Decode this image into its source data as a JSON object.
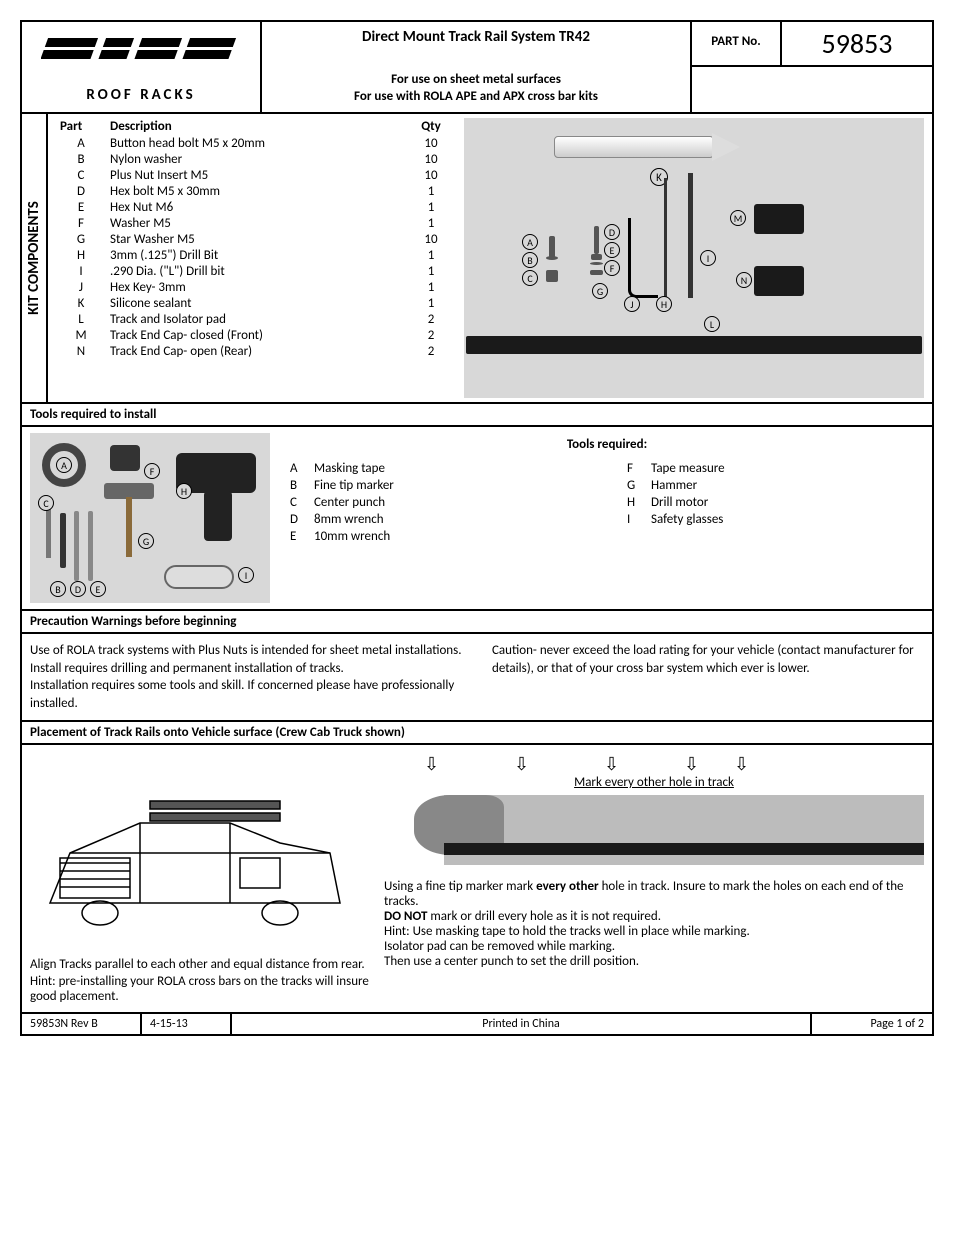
{
  "header": {
    "brand_top": "ROLA",
    "brand_bottom": "ROOF RACKS",
    "title": "Direct Mount Track Rail System TR42",
    "sub1": "For use on sheet metal surfaces",
    "sub2": "For use with ROLA APE and APX cross bar kits",
    "partno_label": "PART No.",
    "partno_value": "59853"
  },
  "kit": {
    "vlabel": "KIT COMPONENTS",
    "col_part": "Part",
    "col_desc": "Description",
    "col_qty": "Qty",
    "rows": [
      {
        "p": "A",
        "d": "Button head bolt M5 x 20mm",
        "q": "10"
      },
      {
        "p": "B",
        "d": "Nylon washer",
        "q": "10"
      },
      {
        "p": "C",
        "d": "Plus Nut Insert M5",
        "q": "10"
      },
      {
        "p": "D",
        "d": "Hex bolt M5 x 30mm",
        "q": "1"
      },
      {
        "p": "E",
        "d": "Hex Nut M6",
        "q": "1"
      },
      {
        "p": "F",
        "d": "Washer M5",
        "q": "1"
      },
      {
        "p": "G",
        "d": "Star Washer M5",
        "q": "10"
      },
      {
        "p": "H",
        "d": "3mm  (.125\") Drill Bit",
        "q": "1"
      },
      {
        "p": "I",
        "d": ".290 Dia. (\"L\") Drill bit",
        "q": "1"
      },
      {
        "p": "J",
        "d": "Hex Key- 3mm",
        "q": "1"
      },
      {
        "p": "K",
        "d": "Silicone sealant",
        "q": "1"
      },
      {
        "p": "L",
        "d": "Track and Isolator pad",
        "q": "2"
      },
      {
        "p": "M",
        "d": "Track End Cap- closed  (Front)",
        "q": "2"
      },
      {
        "p": "N",
        "d": "Track End Cap- open  (Rear)",
        "q": "2"
      }
    ],
    "labels": {
      "A": "A",
      "B": "B",
      "C": "C",
      "D": "D",
      "E": "E",
      "F": "F",
      "G": "G",
      "H": "H",
      "I": "I",
      "J": "J",
      "K": "K",
      "L": "L",
      "M": "M",
      "N": "N"
    }
  },
  "tools_bar": "Tools required to install",
  "tools": {
    "title": "Tools required:",
    "left": [
      {
        "l": "A",
        "t": "Masking tape"
      },
      {
        "l": "B",
        "t": "Fine tip marker"
      },
      {
        "l": "C",
        "t": "Center punch"
      },
      {
        "l": "D",
        "t": "8mm wrench"
      },
      {
        "l": "E",
        "t": "10mm wrench"
      }
    ],
    "right": [
      {
        "l": "F",
        "t": "Tape measure"
      },
      {
        "l": "G",
        "t": "Hammer"
      },
      {
        "l": "H",
        "t": "Drill motor"
      },
      {
        "l": "I",
        "t": "Safety glasses"
      }
    ],
    "img_labels": {
      "A": "A",
      "B": "B",
      "C": "C",
      "D": "D",
      "E": "E",
      "F": "F",
      "G": "G",
      "H": "H",
      "I": "I"
    }
  },
  "precaution_bar": "Precaution Warnings before beginning",
  "precaution": {
    "left1": "Use of ROLA track systems with Plus Nuts is intended for sheet metal installations.",
    "left2": "Install requires drilling and permanent installation of tracks.",
    "left3": "Installation requires some tools and skill.  If concerned please have professionally installed.",
    "right1": "Caution- never exceed the load rating for your vehicle (contact manufacturer for details), or that of your cross bar system which ever is lower."
  },
  "placement_bar": "Placement of Track Rails onto Vehicle surface (Crew Cab Truck shown)",
  "placement": {
    "left1": "Align Tracks parallel to each other and equal distance from rear.",
    "left2": "Hint: pre-installing your ROLA cross bars on the tracks will insure good placement.",
    "mark_label": "Mark every other hole in track",
    "right1a": "Using a fine tip marker mark ",
    "right1b": "every other",
    "right1c": " hole in track. Insure to mark the holes on each end of the tracks.",
    "right2a": "DO NOT",
    "right2b": " mark or drill every hole as it is not required.",
    "right3": "Hint: Use masking tape to hold the tracks well in place while marking.",
    "right4": "Isolator pad can be removed while marking.",
    "right5": "Then use a center punch to set the drill position."
  },
  "footer": {
    "rev": "59853N  Rev B",
    "date": "4-15-13",
    "origin": "Printed in China",
    "page": "Page 1 of 2"
  }
}
